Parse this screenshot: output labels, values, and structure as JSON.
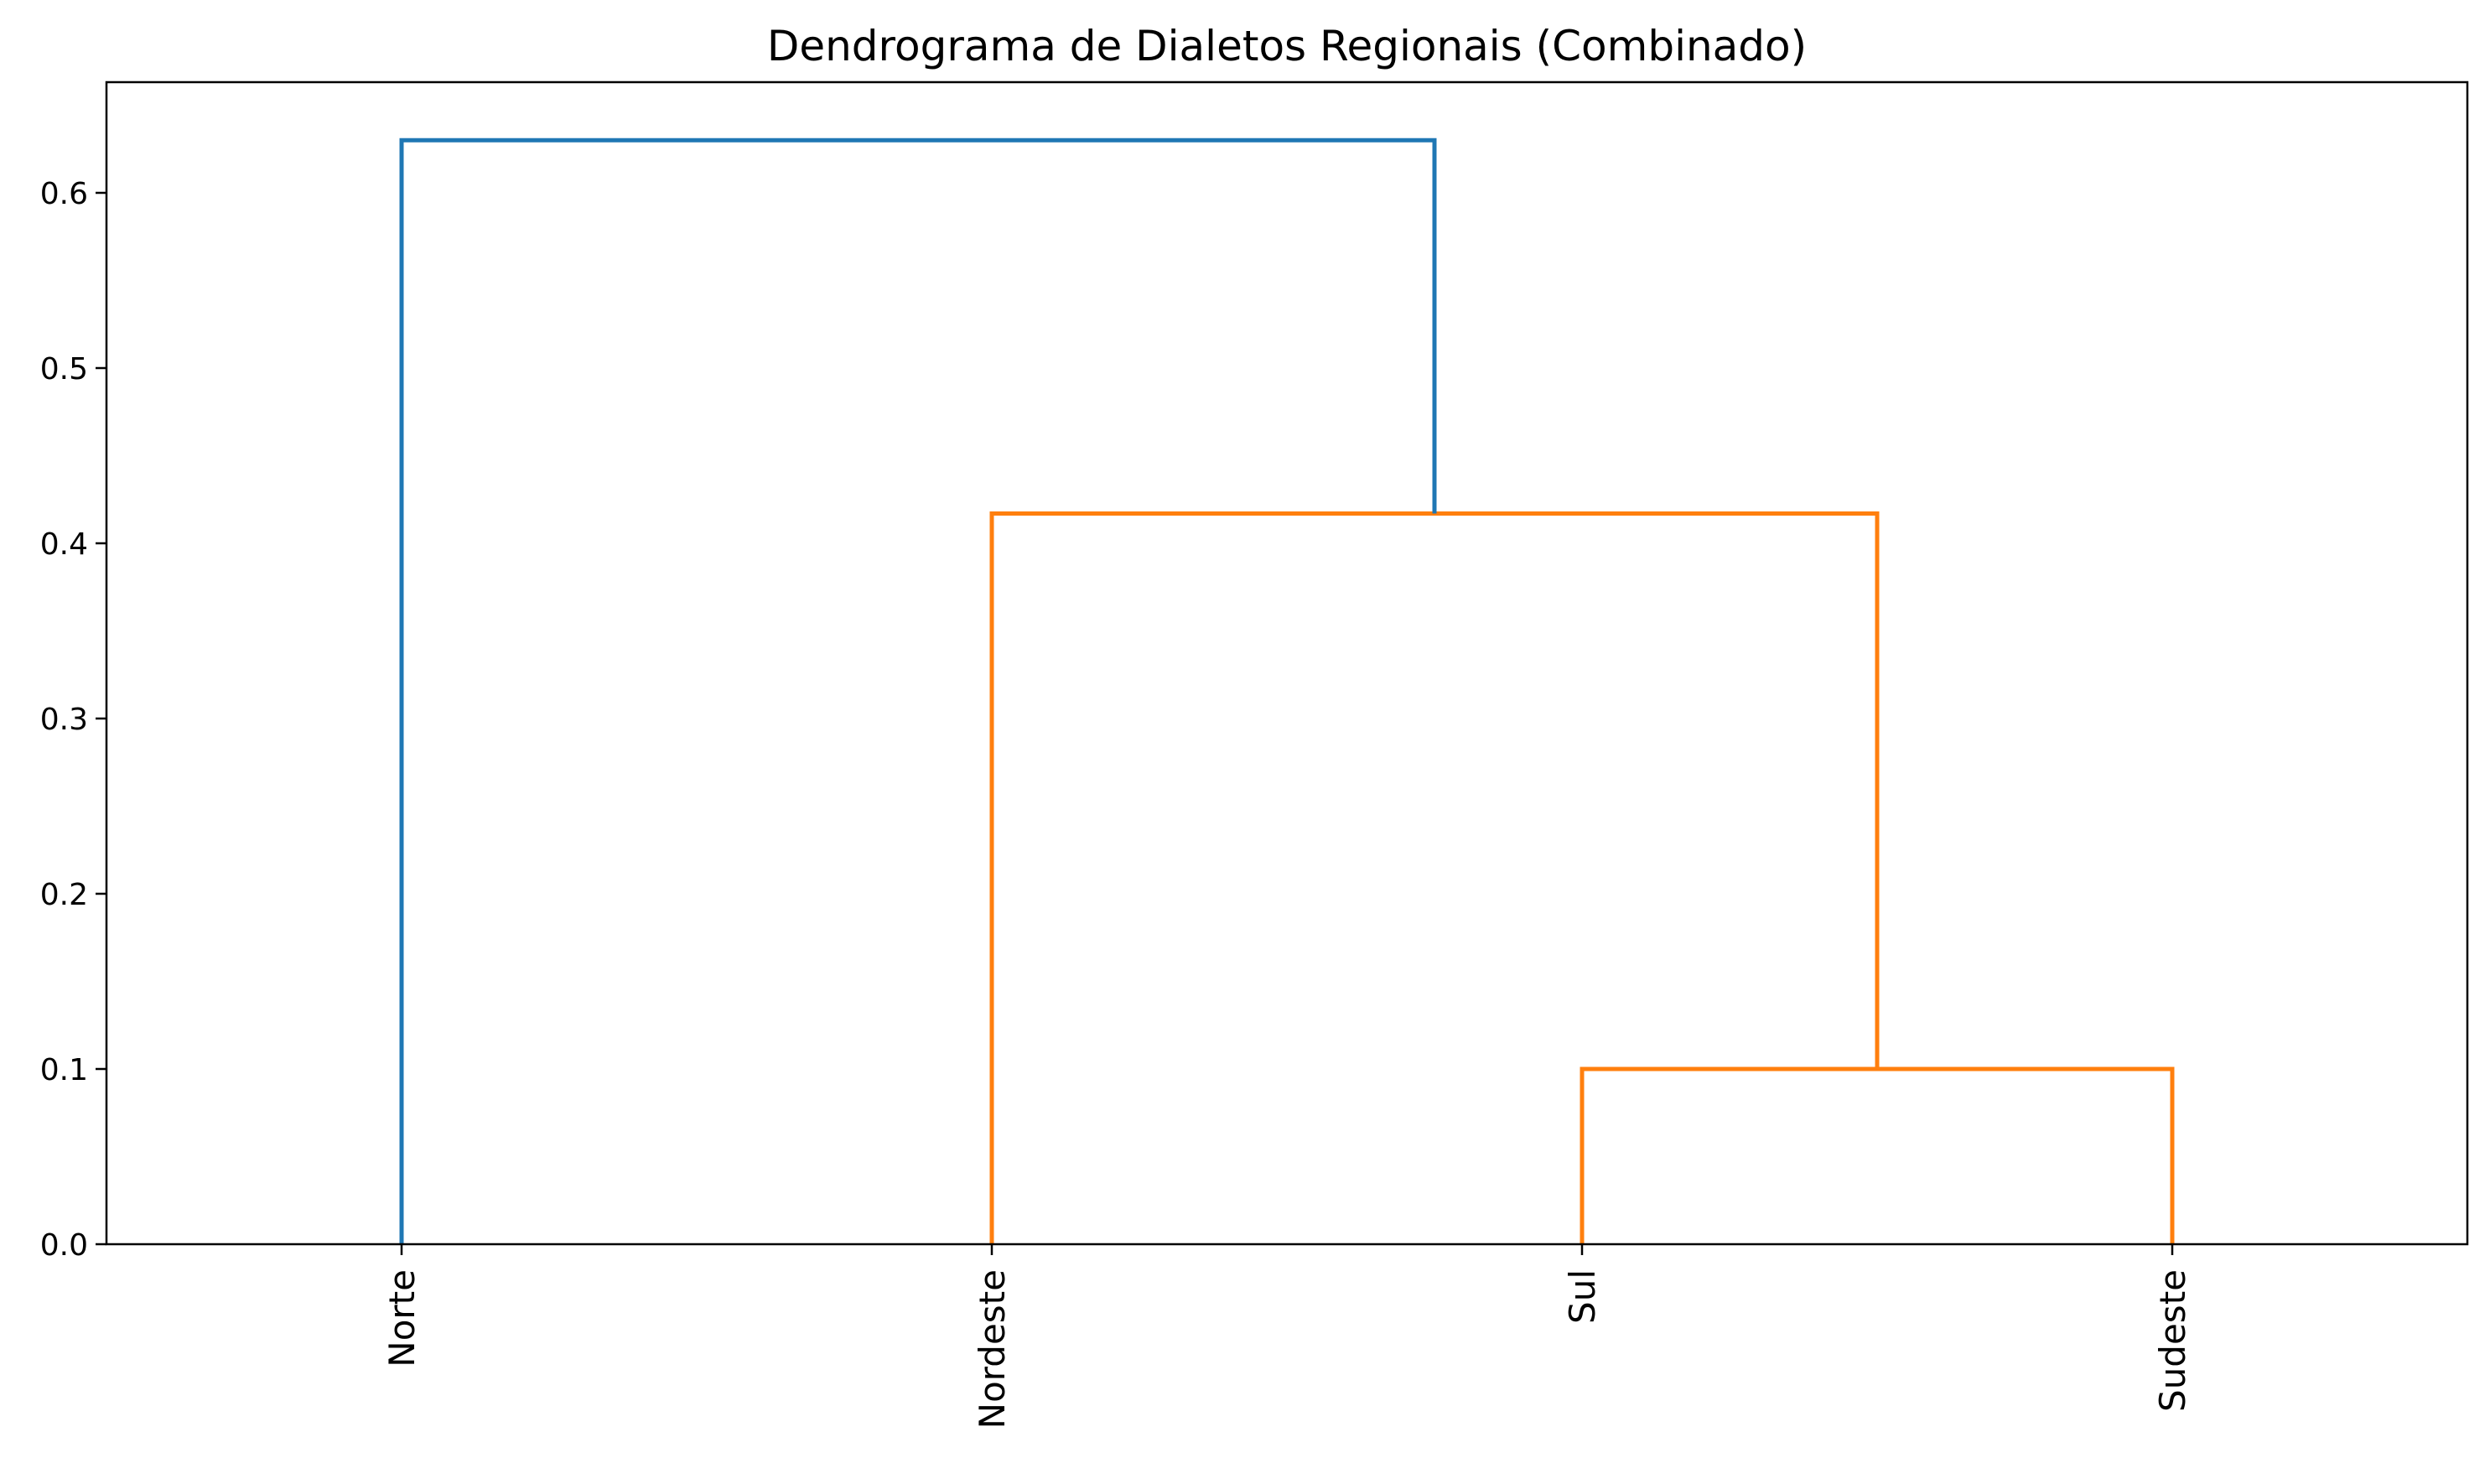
{
  "chart_data": {
    "type": "dendrogram",
    "title": "Dendrograma de Dialetos Regionais (Combinado)",
    "xlabel": "",
    "ylabel": "",
    "leaves": [
      "Norte",
      "Nordeste",
      "Sul",
      "Sudeste"
    ],
    "ylim": [
      0,
      0.66
    ],
    "yticks": [
      {
        "value": 0.0,
        "label": "0.0"
      },
      {
        "value": 0.1,
        "label": "0.1"
      },
      {
        "value": 0.2,
        "label": "0.2"
      },
      {
        "value": 0.3,
        "label": "0.3"
      },
      {
        "value": 0.4,
        "label": "0.4"
      },
      {
        "value": 0.5,
        "label": "0.5"
      },
      {
        "value": 0.6,
        "label": "0.6"
      }
    ],
    "merges": [
      {
        "left": "Sul",
        "right": "Sudeste",
        "height": 0.1,
        "color": "#ff7f0e"
      },
      {
        "left": "Nordeste",
        "right": "Sul + Sudeste",
        "height": 0.417,
        "color": "#ff7f0e"
      },
      {
        "left": "Norte",
        "right": "Nordeste + Sul + Sudeste",
        "height": 0.63,
        "color": "#1f77b4"
      }
    ],
    "grid": false,
    "legend": "none"
  }
}
